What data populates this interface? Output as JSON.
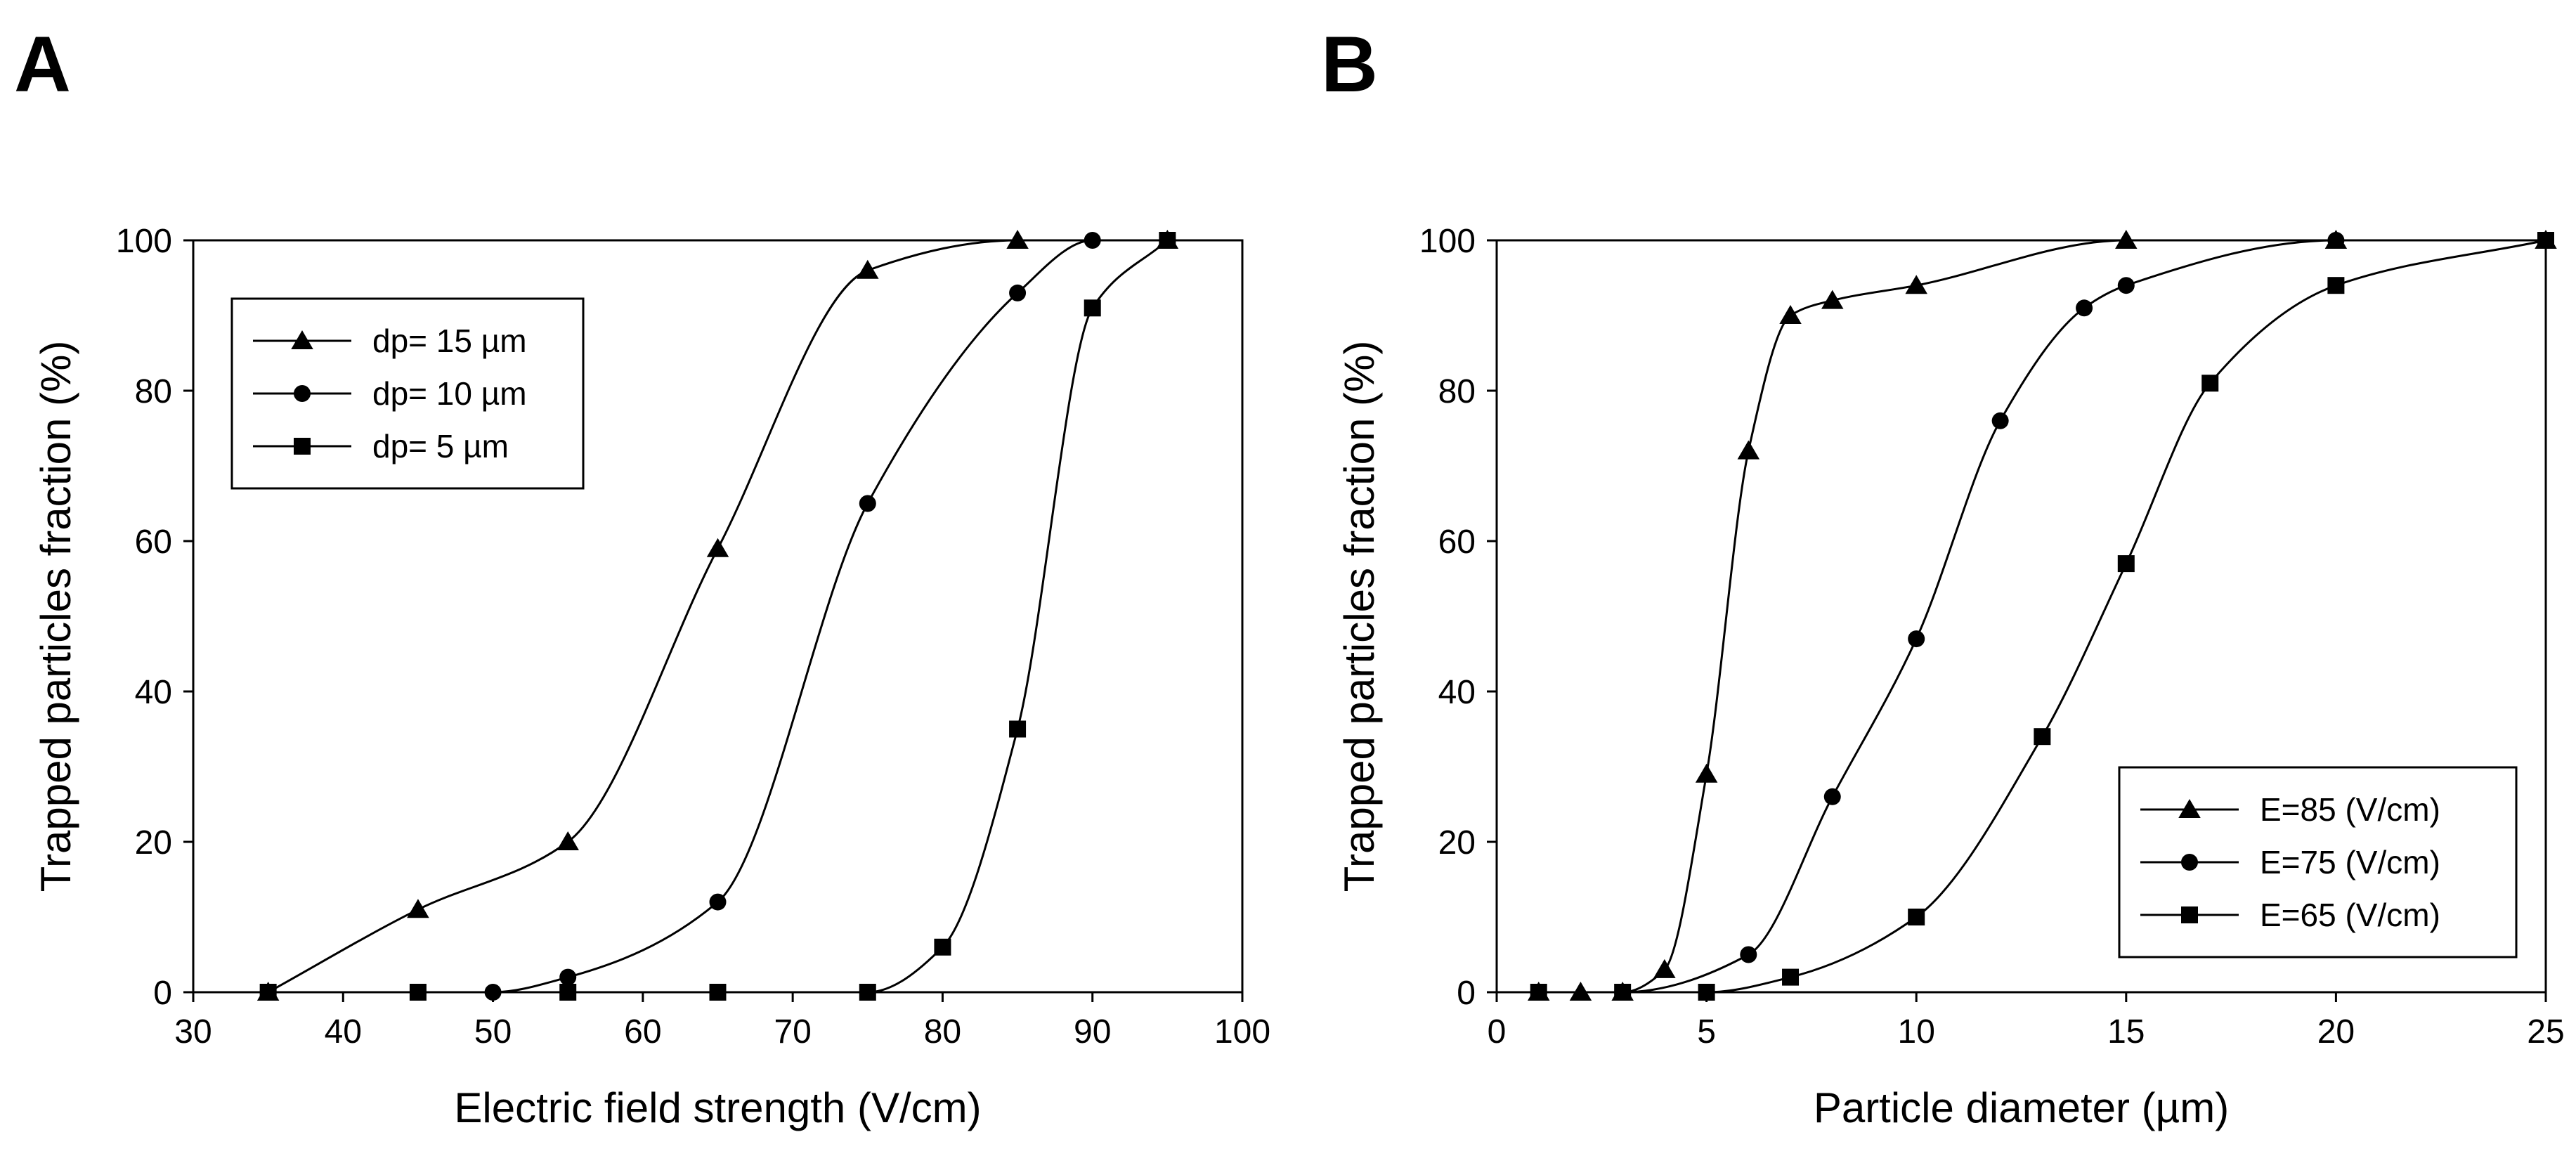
{
  "chart_data": [
    {
      "panel_label": "A",
      "type": "line",
      "title": "",
      "xlabel": "Electric field strength (V/cm)",
      "ylabel": "Trapped particles fraction  (%)",
      "xlim": [
        30,
        100
      ],
      "ylim": [
        0,
        100
      ],
      "xticks": [
        30,
        40,
        50,
        60,
        70,
        80,
        90,
        100
      ],
      "yticks": [
        0,
        20,
        40,
        60,
        80,
        100
      ],
      "grid": false,
      "legend_position": "top-left",
      "series": [
        {
          "name": "dp= 15 µm",
          "marker": "triangle",
          "x": [
            35,
            45,
            55,
            65,
            75,
            85,
            95
          ],
          "y": [
            0,
            11,
            20,
            59,
            96,
            100,
            100
          ]
        },
        {
          "name": "dp= 10 µm",
          "marker": "circle",
          "x": [
            35,
            45,
            50,
            55,
            65,
            75,
            85,
            90,
            95
          ],
          "y": [
            0,
            0,
            0,
            2,
            12,
            65,
            93,
            100,
            100
          ]
        },
        {
          "name": "dp= 5 µm",
          "marker": "square",
          "x": [
            35,
            45,
            55,
            65,
            75,
            80,
            85,
            90,
            95
          ],
          "y": [
            0,
            0,
            0,
            0,
            0,
            6,
            35,
            91,
            100
          ]
        }
      ]
    },
    {
      "panel_label": "B",
      "type": "line",
      "title": "",
      "xlabel": "Particle diameter (µm)",
      "ylabel": "Trapped particles fraction  (%)",
      "xlim": [
        0,
        25
      ],
      "ylim": [
        0,
        100
      ],
      "xticks": [
        0,
        5,
        10,
        15,
        20,
        25
      ],
      "yticks": [
        0,
        20,
        40,
        60,
        80,
        100
      ],
      "grid": false,
      "legend_position": "bottom-right",
      "series": [
        {
          "name": "E=85 (V/cm)",
          "marker": "triangle",
          "x": [
            1,
            2,
            3,
            4,
            5,
            6,
            7,
            8,
            10,
            15,
            20,
            25
          ],
          "y": [
            0,
            0,
            0,
            3,
            29,
            72,
            90,
            92,
            94,
            100,
            100,
            100
          ]
        },
        {
          "name": "E=75 (V/cm)",
          "marker": "circle",
          "x": [
            1,
            3,
            6,
            8,
            10,
            12,
            14,
            15,
            20,
            25
          ],
          "y": [
            0,
            0,
            5,
            26,
            47,
            76,
            91,
            94,
            100,
            100
          ]
        },
        {
          "name": "E=65 (V/cm)",
          "marker": "square",
          "x": [
            1,
            3,
            5,
            7,
            10,
            13,
            15,
            17,
            20,
            25
          ],
          "y": [
            0,
            0,
            0,
            2,
            10,
            34,
            57,
            81,
            94,
            100
          ]
        }
      ]
    }
  ]
}
